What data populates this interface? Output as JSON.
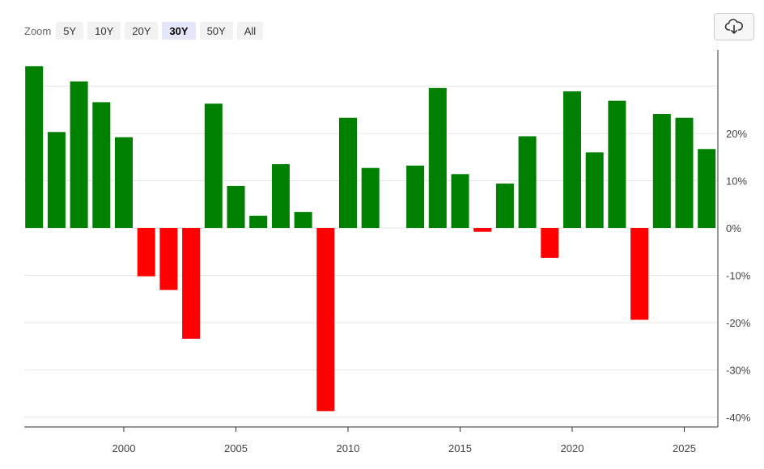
{
  "toolbar": {
    "zoom_label": "Zoom",
    "buttons": [
      "5Y",
      "10Y",
      "20Y",
      "30Y",
      "50Y",
      "All"
    ],
    "active": "30Y",
    "download_icon": "cloud-download-icon"
  },
  "colors": {
    "positive": "#008000",
    "negative": "#ff0000"
  },
  "chart_data": {
    "type": "bar",
    "title": "",
    "xlabel": "",
    "ylabel": "",
    "x": [
      1996,
      1997,
      1998,
      1999,
      2000,
      2001,
      2002,
      2003,
      2004,
      2005,
      2006,
      2007,
      2008,
      2009,
      2010,
      2011,
      2012,
      2013,
      2014,
      2015,
      2016,
      2017,
      2018,
      2019,
      2020,
      2021,
      2022,
      2023,
      2024,
      2025,
      2026
    ],
    "values": [
      34.2,
      20.3,
      31.0,
      26.6,
      19.2,
      -10.2,
      -13.1,
      -23.4,
      26.3,
      8.9,
      2.6,
      13.5,
      3.4,
      -38.7,
      23.3,
      12.7,
      0,
      13.2,
      29.6,
      11.4,
      -0.8,
      9.4,
      19.4,
      -6.3,
      28.9,
      16.0,
      26.9,
      -19.4,
      24.1,
      23.3,
      16.7
    ],
    "x_ticks": [
      "2000",
      "2005",
      "2010",
      "2015",
      "2020",
      "2025"
    ],
    "x_tick_values": [
      2000,
      2005,
      2010,
      2015,
      2020,
      2025
    ],
    "y_ticks": [
      "20%",
      "10%",
      "0%",
      "-10%",
      "-20%",
      "-30%",
      "-40%"
    ],
    "y_tick_values": [
      20,
      10,
      0,
      -10,
      -20,
      -30,
      -40
    ],
    "ylim": [
      -42,
      38
    ],
    "y_axis_side": "right",
    "grid": true
  }
}
